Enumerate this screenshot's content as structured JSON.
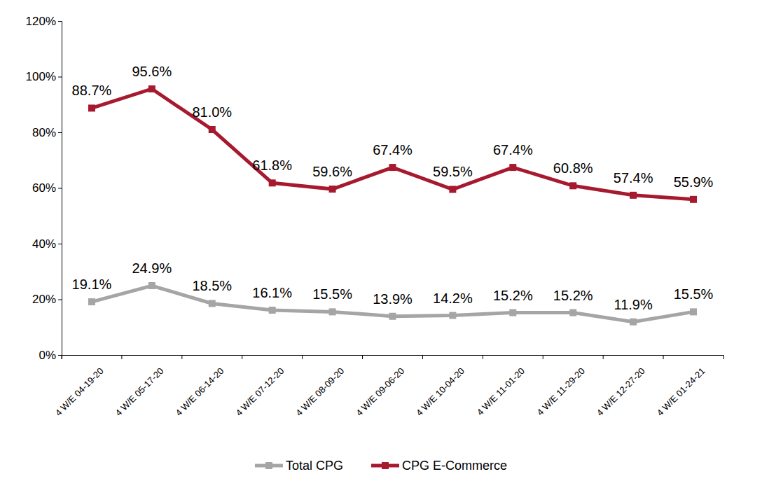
{
  "chart_data": {
    "type": "line",
    "categories": [
      "4 W/E 04-19-20",
      "4 W/E 05-17-20",
      "4 W/E 06-14-20",
      "4 W/E 07-12-20",
      "4 W/E 08-09-20",
      "4 W/E 09-06-20",
      "4 W/E 10-04-20",
      "4 W/E 11-01-20",
      "4 W/E 11-29-20",
      "4 W/E 12-27-20",
      "4 W/E 01-24-21"
    ],
    "series": [
      {
        "name": "Total CPG",
        "color": "#a5a5a5",
        "marker": "square",
        "values": [
          19.1,
          24.9,
          18.5,
          16.1,
          15.5,
          13.9,
          14.2,
          15.2,
          15.2,
          11.9,
          15.5
        ],
        "value_labels": [
          "19.1%",
          "24.9%",
          "18.5%",
          "16.1%",
          "15.5%",
          "13.9%",
          "14.2%",
          "15.2%",
          "15.2%",
          "11.9%",
          "15.5%"
        ]
      },
      {
        "name": "CPG E-Commerce",
        "color": "#a6192e",
        "marker": "square",
        "values": [
          88.7,
          95.6,
          81.0,
          61.8,
          59.6,
          67.4,
          59.5,
          67.4,
          60.8,
          57.4,
          55.9
        ],
        "value_labels": [
          "88.7%",
          "95.6%",
          "81.0%",
          "61.8%",
          "59.6%",
          "67.4%",
          "59.5%",
          "67.4%",
          "60.8%",
          "57.4%",
          "55.9%"
        ]
      }
    ],
    "ylim": [
      0,
      120
    ],
    "yticks": [
      {
        "value": 0,
        "label": "0%"
      },
      {
        "value": 20,
        "label": "20%"
      },
      {
        "value": 40,
        "label": "40%"
      },
      {
        "value": 60,
        "label": "60%"
      },
      {
        "value": 80,
        "label": "80%"
      },
      {
        "value": 100,
        "label": "100%"
      },
      {
        "value": 120,
        "label": "120%"
      }
    ],
    "grid": false,
    "data_labels": true,
    "legend": "bottom"
  }
}
